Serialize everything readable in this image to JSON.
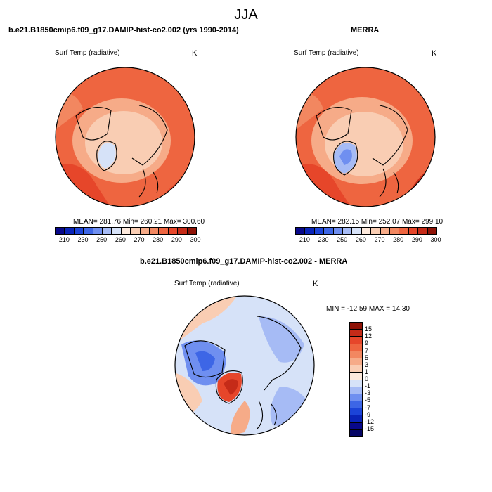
{
  "title": "JJA",
  "panels": [
    {
      "title": "b.e21.B1850cmip6.f09_g17.DAMIP-hist-co2.002 (yrs 1990-2014)",
      "variable": "Surf Temp (radiative)",
      "units": "K",
      "stats": "MEAN= 281.76  Min= 260.21  Max= 300.60"
    },
    {
      "title": "MERRA",
      "variable": "Surf Temp (radiative)",
      "units": "K",
      "stats": "MEAN= 282.15  Min= 252.07  Max= 299.10"
    }
  ],
  "difference": {
    "title": "b.e21.B1850cmip6.f09_g17.DAMIP-hist-co2.002 - MERRA",
    "variable": "Surf Temp (radiative)",
    "units": "K",
    "stats": "MIN = -12.59 MAX =  14.30"
  },
  "abs_colorbar": {
    "labels": [
      "210",
      "230",
      "250",
      "260",
      "270",
      "280",
      "290",
      "300"
    ],
    "colors": [
      "#08088a",
      "#0a24b8",
      "#1c44d8",
      "#3d66e6",
      "#6f8ff0",
      "#a6bbf5",
      "#d6e2f8",
      "#fde9dc",
      "#f9cdb3",
      "#f6ab88",
      "#f28760",
      "#ee6540",
      "#e6462a",
      "#c52b18",
      "#8e1206"
    ]
  },
  "diff_colorbar": {
    "labels": [
      "15",
      "12",
      "9",
      "7",
      "5",
      "3",
      "1",
      "0",
      "-1",
      "-3",
      "-5",
      "-7",
      "-9",
      "-12",
      "-15"
    ],
    "colors": [
      "#8e1206",
      "#c52b18",
      "#e6462a",
      "#ee6540",
      "#f28760",
      "#f6ab88",
      "#f9cdb3",
      "#fde9dc",
      "#d6e2f8",
      "#a6bbf5",
      "#6f8ff0",
      "#3d66e6",
      "#1c44d8",
      "#0a24b8",
      "#08088a",
      "#060666"
    ]
  }
}
